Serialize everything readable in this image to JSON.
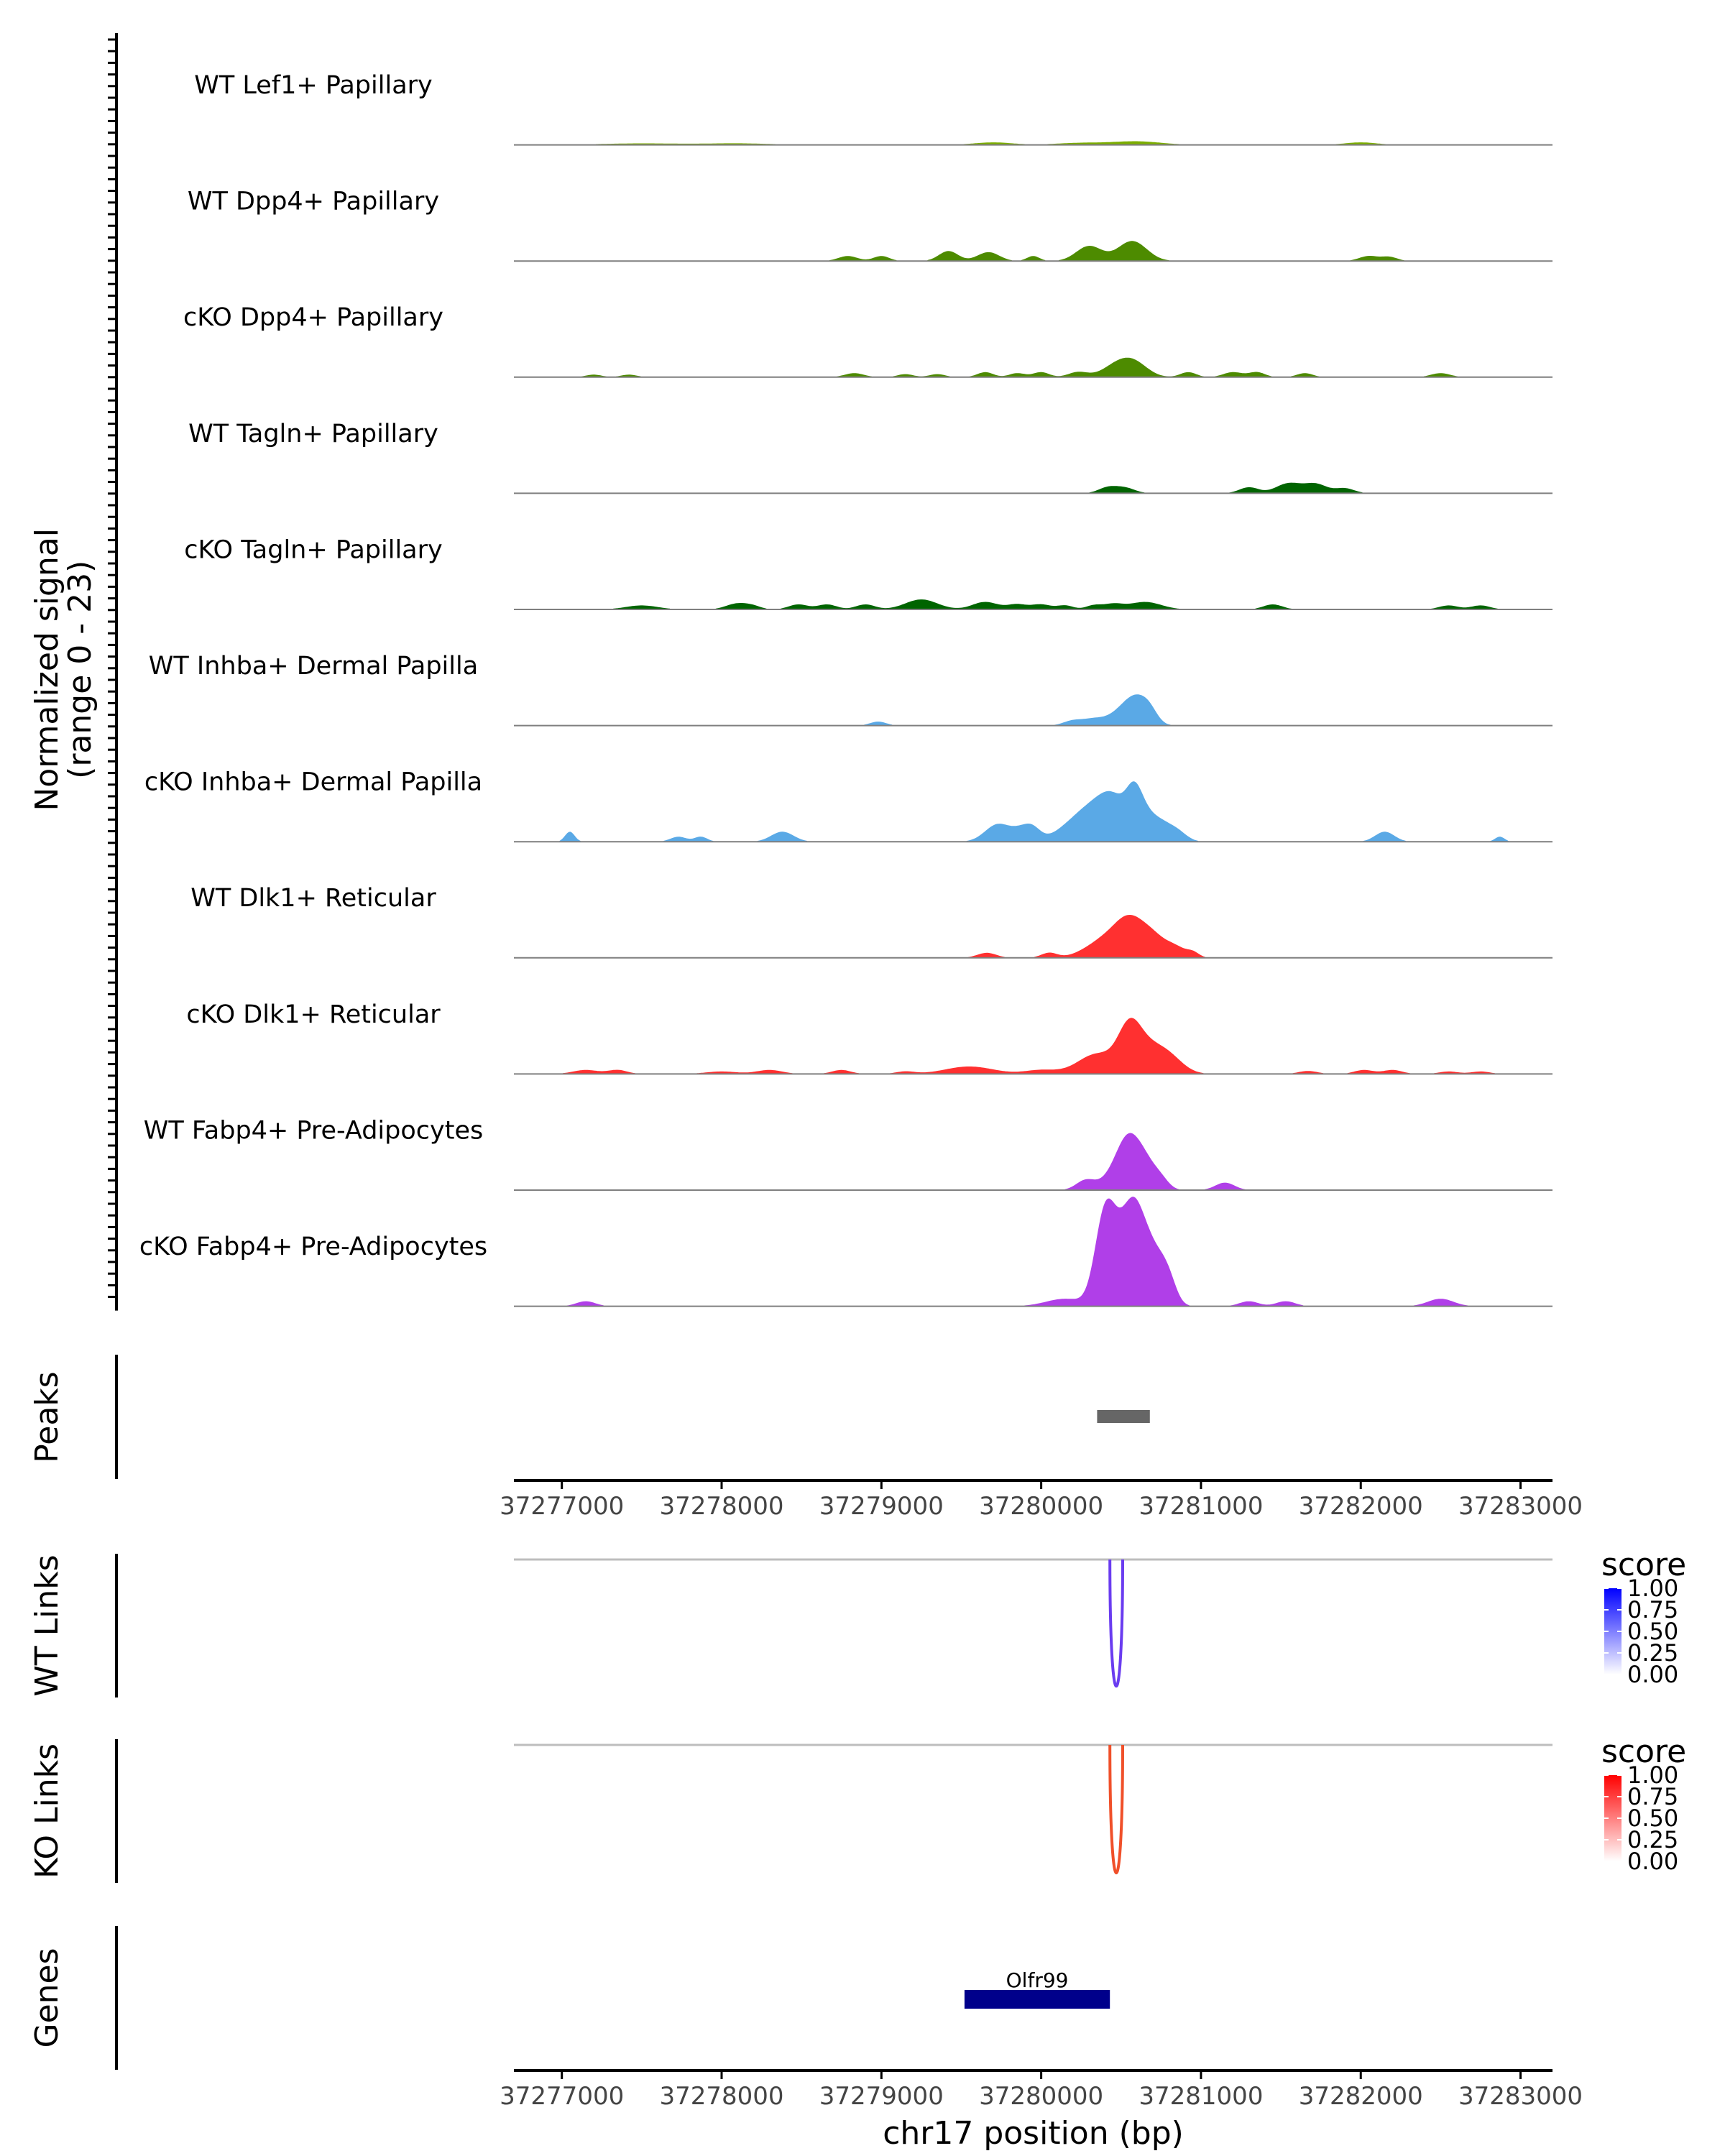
{
  "chart_data": {
    "type": "area",
    "title": "",
    "chromosome": "chr17",
    "xlabel": "chr17 position (bp)",
    "xlim": [
      37276700,
      37283200
    ],
    "xticks": [
      37277000,
      37278000,
      37279000,
      37280000,
      37281000,
      37282000,
      37283000
    ],
    "xtick_labels": [
      "37277000",
      "37278000",
      "37279000",
      "37280000",
      "37281000",
      "37282000",
      "37283000"
    ],
    "coverage": {
      "ylabel_line1": "Normalized signal",
      "ylabel_line2": "(range 0 - 23)",
      "ylim": [
        0,
        23
      ],
      "series": [
        {
          "name": "WT Lef1+ Papillary",
          "color": "#7CAE00",
          "peaks": [
            [
              37277500,
              0.3,
              250
            ],
            [
              37278100,
              0.3,
              200
            ],
            [
              37279700,
              0.5,
              120
            ],
            [
              37280250,
              0.4,
              150
            ],
            [
              37280600,
              0.7,
              150
            ],
            [
              37282000,
              0.5,
              100
            ]
          ]
        },
        {
          "name": "WT Dpp4+ Papillary",
          "color": "#4D8B00",
          "peaks": [
            [
              37278790,
              1.0,
              60
            ],
            [
              37279000,
              1.0,
              50
            ],
            [
              37279420,
              2.0,
              60
            ],
            [
              37279640,
              1.0,
              60
            ],
            [
              37279700,
              1.0,
              60
            ],
            [
              37279950,
              1.0,
              40
            ],
            [
              37280300,
              3.0,
              80
            ],
            [
              37280570,
              4.0,
              90
            ],
            [
              37282050,
              1.0,
              60
            ],
            [
              37282180,
              0.8,
              50
            ]
          ]
        },
        {
          "name": "cKO Dpp4+ Papillary",
          "color": "#4D8B00",
          "peaks": [
            [
              37277200,
              0.5,
              50
            ],
            [
              37277420,
              0.5,
              50
            ],
            [
              37278830,
              0.8,
              60
            ],
            [
              37279150,
              0.6,
              50
            ],
            [
              37279350,
              0.6,
              50
            ],
            [
              37279650,
              1.0,
              50
            ],
            [
              37279850,
              0.8,
              50
            ],
            [
              37280000,
              1.0,
              50
            ],
            [
              37280230,
              1.0,
              60
            ],
            [
              37280500,
              3.0,
              100
            ],
            [
              37280600,
              1.5,
              80
            ],
            [
              37280920,
              1.0,
              50
            ],
            [
              37281200,
              1.0,
              60
            ],
            [
              37281350,
              1.0,
              50
            ],
            [
              37281650,
              0.8,
              50
            ],
            [
              37282500,
              0.8,
              60
            ]
          ]
        },
        {
          "name": "WT Tagln+ Papillary",
          "color": "#006400",
          "peaks": [
            [
              37280420,
              1.2,
              60
            ],
            [
              37280530,
              1.0,
              60
            ],
            [
              37281300,
              1.2,
              60
            ],
            [
              37281550,
              2.0,
              80
            ],
            [
              37281720,
              1.8,
              70
            ],
            [
              37281900,
              1.0,
              60
            ]
          ]
        },
        {
          "name": "cKO Tagln+ Papillary",
          "color": "#006400",
          "peaks": [
            [
              37277500,
              0.8,
              100
            ],
            [
              37278100,
              1.2,
              70
            ],
            [
              37278200,
              0.5,
              50
            ],
            [
              37278480,
              1.0,
              60
            ],
            [
              37278660,
              1.0,
              60
            ],
            [
              37278900,
              1.0,
              60
            ],
            [
              37279250,
              2.0,
              100
            ],
            [
              37279650,
              1.5,
              80
            ],
            [
              37279850,
              1.0,
              60
            ],
            [
              37280000,
              1.0,
              60
            ],
            [
              37280150,
              0.8,
              50
            ],
            [
              37280330,
              0.8,
              50
            ],
            [
              37280450,
              1.0,
              60
            ],
            [
              37280650,
              1.5,
              100
            ],
            [
              37281450,
              1.0,
              60
            ],
            [
              37282550,
              0.8,
              60
            ],
            [
              37282750,
              0.8,
              60
            ]
          ]
        },
        {
          "name": "WT Inhba+ Dermal Papilla",
          "color": "#5AA9E6",
          "peaks": [
            [
              37278980,
              0.8,
              50
            ],
            [
              37280200,
              1.0,
              60
            ],
            [
              37280320,
              1.0,
              60
            ],
            [
              37280520,
              3.0,
              100
            ],
            [
              37280600,
              3.5,
              70
            ],
            [
              37280680,
              2.0,
              50
            ]
          ]
        },
        {
          "name": "cKO Inhba+ Dermal Papilla",
          "color": "#5AA9E6",
          "peaks": [
            [
              37277050,
              2.0,
              30
            ],
            [
              37277730,
              1.0,
              50
            ],
            [
              37277870,
              1.0,
              40
            ],
            [
              37278380,
              2.0,
              70
            ],
            [
              37279730,
              3.5,
              80
            ],
            [
              37279880,
              2.0,
              60
            ],
            [
              37279950,
              2.0,
              50
            ],
            [
              37280230,
              4.0,
              120
            ],
            [
              37280370,
              5.0,
              100
            ],
            [
              37280470,
              5.5,
              80
            ],
            [
              37280580,
              7.0,
              50
            ],
            [
              37280650,
              4.5,
              60
            ],
            [
              37280750,
              3.0,
              60
            ],
            [
              37280850,
              2.0,
              60
            ],
            [
              37282150,
              2.0,
              60
            ],
            [
              37282870,
              1.0,
              30
            ]
          ]
        },
        {
          "name": "WT Dlk1+ Reticular",
          "color": "#FF3030",
          "peaks": [
            [
              37279660,
              1.0,
              60
            ],
            [
              37280050,
              1.0,
              50
            ],
            [
              37280400,
              3.5,
              120
            ],
            [
              37280550,
              6.0,
              90
            ],
            [
              37280700,
              4.0,
              90
            ],
            [
              37280850,
              1.5,
              60
            ],
            [
              37280950,
              1.0,
              40
            ]
          ]
        },
        {
          "name": "cKO Dlk1+ Reticular",
          "color": "#FF3030",
          "peaks": [
            [
              37277150,
              0.8,
              80
            ],
            [
              37277350,
              0.8,
              60
            ],
            [
              37278000,
              0.5,
              100
            ],
            [
              37278300,
              0.8,
              80
            ],
            [
              37278750,
              0.8,
              60
            ],
            [
              37279150,
              0.5,
              60
            ],
            [
              37279550,
              1.5,
              150
            ],
            [
              37280000,
              0.8,
              100
            ],
            [
              37280350,
              4.0,
              120
            ],
            [
              37280550,
              7.0,
              70
            ],
            [
              37280650,
              5.0,
              100
            ],
            [
              37280800,
              3.0,
              90
            ],
            [
              37281670,
              0.6,
              60
            ],
            [
              37282020,
              0.8,
              60
            ],
            [
              37282200,
              0.8,
              60
            ],
            [
              37282550,
              0.5,
              60
            ],
            [
              37282750,
              0.5,
              60
            ]
          ]
        },
        {
          "name": "WT Fabp4+ Pre-Adipocytes",
          "color": "#B03FE8",
          "peaks": [
            [
              37280280,
              2.0,
              60
            ],
            [
              37280480,
              4.0,
              80
            ],
            [
              37280560,
              8.0,
              70
            ],
            [
              37280660,
              4.0,
              60
            ],
            [
              37280750,
              2.0,
              50
            ],
            [
              37281150,
              1.5,
              60
            ]
          ]
        },
        {
          "name": "cKO Fabp4+ Pre-Adipocytes",
          "color": "#B03FE8",
          "peaks": [
            [
              37277150,
              1.0,
              60
            ],
            [
              37280150,
              1.5,
              120
            ],
            [
              37280390,
              15.0,
              60
            ],
            [
              37280460,
              9.0,
              60
            ],
            [
              37280560,
              15.0,
              60
            ],
            [
              37280640,
              10.0,
              60
            ],
            [
              37280730,
              7.0,
              60
            ],
            [
              37280800,
              4.0,
              50
            ],
            [
              37281300,
              1.0,
              60
            ],
            [
              37281530,
              1.0,
              60
            ],
            [
              37282500,
              1.5,
              80
            ]
          ]
        }
      ]
    },
    "peaks": {
      "label": "Peaks",
      "ranges": [
        [
          37280350,
          37280680
        ]
      ]
    },
    "links": [
      {
        "label": "WT Links",
        "legend_title": "score",
        "legend_ticks": [
          "1.00",
          "0.75",
          "0.50",
          "0.25",
          "0.00"
        ],
        "color_low": "#FFFFFF",
        "color_high": "#0000FF",
        "arc_color": "#6A3CF0",
        "arcs": [
          {
            "start": 37280430,
            "end": 37280510,
            "score": 0.7
          }
        ]
      },
      {
        "label": "KO Links",
        "legend_title": "score",
        "legend_ticks": [
          "1.00",
          "0.75",
          "0.50",
          "0.25",
          "0.00"
        ],
        "color_low": "#FFFFFF",
        "color_high": "#FF0000",
        "arc_color": "#F0502A",
        "arcs": [
          {
            "start": 37280430,
            "end": 37280510,
            "score": 0.7
          }
        ]
      }
    ],
    "genes": {
      "label": "Genes",
      "items": [
        {
          "name": "Olfr99",
          "start": 37279520,
          "end": 37280430,
          "color": "#00008B"
        }
      ]
    }
  }
}
